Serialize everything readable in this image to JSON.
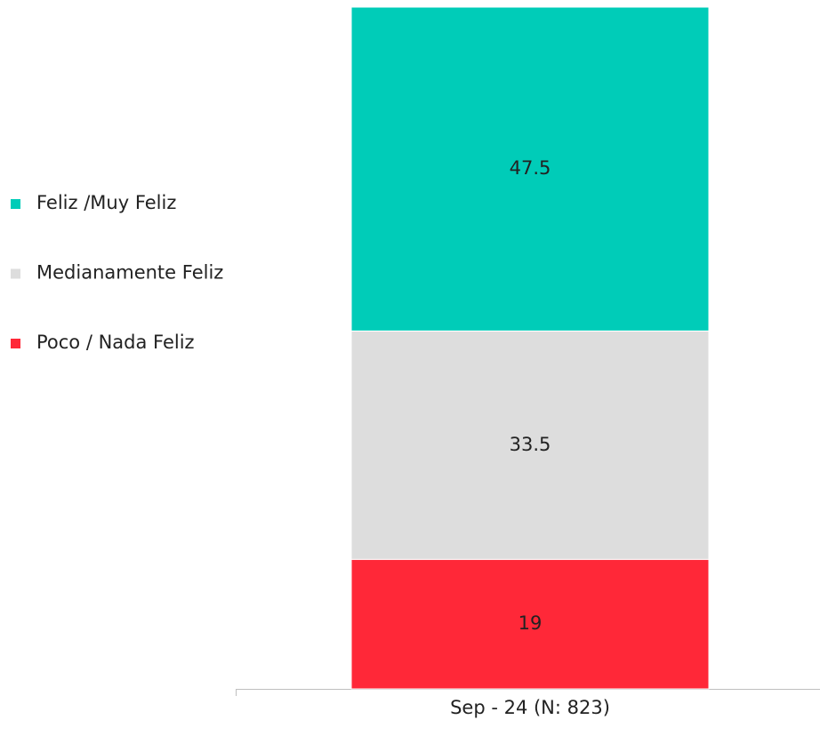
{
  "chart_data": {
    "type": "stacked_bar",
    "categories": [
      "Sep - 24 (N: 823)"
    ],
    "series": [
      {
        "name": "Feliz /Muy Feliz",
        "color": "#00ccb8",
        "values": [
          47.5
        ]
      },
      {
        "name": "Medianamente Feliz",
        "color": "#dddddd",
        "values": [
          33.5
        ]
      },
      {
        "name": "Poco / Nada Feliz",
        "color": "#ff2838",
        "values": [
          19
        ]
      }
    ],
    "legend": "left"
  }
}
